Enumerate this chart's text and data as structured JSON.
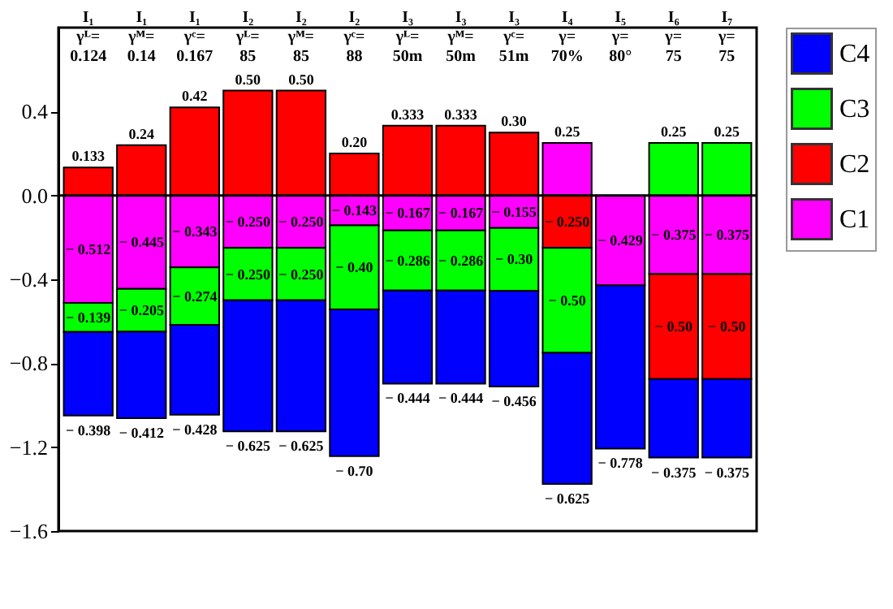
{
  "chart_data": {
    "type": "bar",
    "stacked": true,
    "categories": [
      "I₁\nγᴸ=\n0.124",
      "I₁\nγᴹ=\n0.14",
      "I₁\nγᶜ=\n0.167",
      "I₂\nγᴸ=\n85",
      "I₂\nγᴹ=\n85",
      "I₂\nγᶜ=\n88",
      "I₃\nγᴸ=\n50m",
      "I₃\nγᴹ=\n50m",
      "I₃\nγᶜ=\n51m",
      "I₄\nγ=\n70%",
      "I₅\nγ=\n80°",
      "I₆\nγ=\n75",
      "I₇\nγ=\n75"
    ],
    "series": [
      {
        "name": "C1",
        "color": "#ff00ff",
        "values": [
          -0.512,
          -0.445,
          -0.343,
          -0.25,
          -0.25,
          -0.143,
          -0.167,
          -0.167,
          -0.155,
          0.25,
          -0.429,
          -0.375,
          -0.375
        ],
        "value_labels": [
          "− 0.512",
          "− 0.445",
          "− 0.343",
          "− 0.250",
          "− 0.250",
          "− 0.143",
          "− 0.167",
          "− 0.167",
          "− 0.155",
          "0.25",
          "− 0.429",
          "− 0.375",
          "− 0.375"
        ]
      },
      {
        "name": "C2",
        "color": "#ff0000",
        "values": [
          0.133,
          0.24,
          0.42,
          0.5,
          0.5,
          0.2,
          0.333,
          0.333,
          0.3,
          -0.25,
          null,
          -0.5,
          -0.5
        ],
        "value_labels": [
          "0.133",
          "0.24",
          "0.42",
          "0.50",
          "0.50",
          "0.20",
          "0.333",
          "0.333",
          "0.30",
          "− 0.250",
          null,
          "− 0.50",
          "− 0.50"
        ]
      },
      {
        "name": "C3",
        "color": "#00ff00",
        "values": [
          -0.139,
          -0.205,
          -0.274,
          -0.25,
          -0.25,
          -0.4,
          -0.286,
          -0.286,
          -0.3,
          -0.5,
          null,
          0.25,
          0.25
        ],
        "value_labels": [
          "− 0.139",
          "− 0.205",
          "− 0.274",
          "− 0.250",
          "− 0.250",
          "− 0.40",
          "− 0.286",
          "− 0.286",
          "− 0.30",
          "− 0.50",
          null,
          "0.25",
          "0.25"
        ]
      },
      {
        "name": "C4",
        "color": "#0000ff",
        "values": [
          -0.398,
          -0.412,
          -0.428,
          -0.625,
          -0.625,
          -0.7,
          -0.444,
          -0.444,
          -0.456,
          -0.625,
          -0.778,
          -0.375,
          -0.375
        ],
        "value_labels": [
          "− 0.398",
          "− 0.412",
          "− 0.428",
          "− 0.625",
          "− 0.625",
          "− 0.70",
          "− 0.444",
          "− 0.444",
          "− 0.456",
          "− 0.625",
          "− 0.778",
          "− 0.375",
          "− 0.375"
        ]
      }
    ],
    "ylim": [
      -1.6,
      0.8
    ],
    "yticks": [
      -1.6,
      -1.2,
      -0.8,
      -0.4,
      {
        "value": 0,
        "label": "0.0"
      },
      0.4
    ],
    "ref_lines": [
      {
        "axis": "y",
        "value": 0
      }
    ],
    "grid": false,
    "legend": "right"
  }
}
